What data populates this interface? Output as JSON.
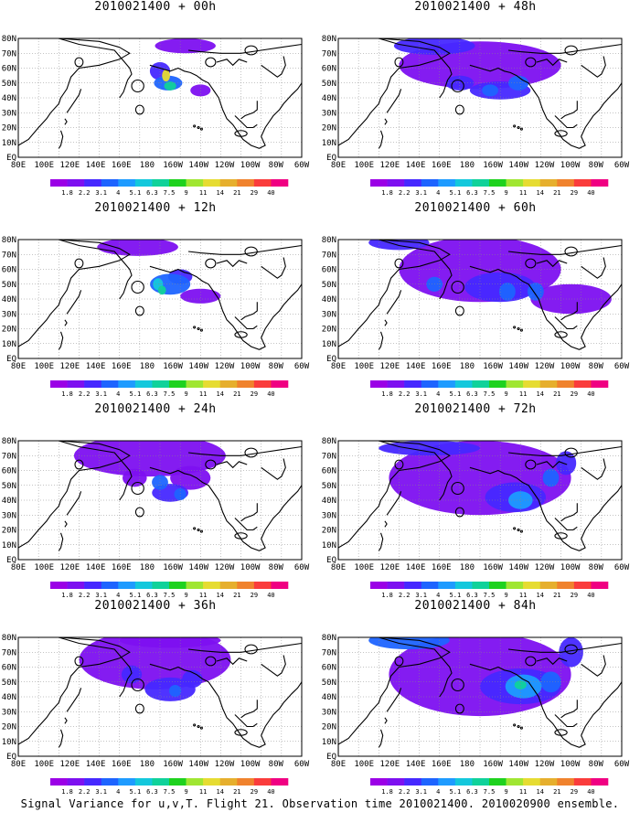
{
  "footer": "Signal Variance for u,v,T. Flight 21. Observation time 2010021400. 2010020900 ensemble.",
  "lon_labels": [
    "80E",
    "100E",
    "120E",
    "140E",
    "160E",
    "180",
    "160W",
    "140W",
    "120W",
    "100W",
    "80W",
    "60W"
  ],
  "lat_labels": [
    "EQ",
    "10N",
    "20N",
    "30N",
    "40N",
    "50N",
    "60N",
    "70N",
    "80N"
  ],
  "colorbar": {
    "levels": [
      "1.8",
      "2.2",
      "3.1",
      "4",
      "5.1",
      "6.3",
      "7.5",
      "9",
      "11",
      "14",
      "21",
      "29",
      "40"
    ],
    "colors": [
      "#9b00e6",
      "#7d10f0",
      "#4628ff",
      "#1e64ff",
      "#1e9bff",
      "#14c8dc",
      "#10d29a",
      "#1ed21e",
      "#a0e632",
      "#e6dc32",
      "#e6af2d",
      "#f0822d",
      "#fa3c3c",
      "#f00082"
    ]
  },
  "chart_data": [
    {
      "type": "heatmap",
      "title": "2010021400 + 00h",
      "lead_hours": 0,
      "xlim": [
        "80E",
        "60W"
      ],
      "ylim": [
        "EQ",
        "80N"
      ],
      "approx_max_variance": 29,
      "blobs": [
        [
          148,
          50,
          14,
          5,
          3
        ],
        [
          140,
          58,
          10,
          6,
          2
        ],
        [
          165,
          75,
          30,
          5,
          1
        ],
        [
          180,
          45,
          10,
          4,
          1
        ],
        [
          150,
          48,
          6,
          3,
          6
        ],
        [
          146,
          55,
          4,
          4,
          9
        ]
      ]
    },
    {
      "type": "heatmap",
      "title": "2010021400 + 12h",
      "lead_hours": 12,
      "xlim": [
        "80E",
        "60W"
      ],
      "ylim": [
        "EQ",
        "80N"
      ],
      "approx_max_variance": 7.5,
      "blobs": [
        [
          150,
          50,
          20,
          7,
          3
        ],
        [
          118,
          75,
          40,
          6,
          1
        ],
        [
          180,
          42,
          20,
          5,
          1
        ],
        [
          138,
          50,
          5,
          4,
          5
        ],
        [
          142,
          46,
          4,
          3,
          6
        ],
        [
          160,
          55,
          12,
          5,
          2
        ]
      ]
    },
    {
      "type": "heatmap",
      "title": "2010021400 + 24h",
      "lead_hours": 24,
      "xlim": [
        "80E",
        "60W"
      ],
      "ylim": [
        "EQ",
        "80N"
      ],
      "approx_max_variance": 5.1,
      "blobs": [
        [
          130,
          70,
          75,
          14,
          1
        ],
        [
          150,
          45,
          18,
          6,
          2
        ],
        [
          170,
          55,
          20,
          8,
          1
        ],
        [
          140,
          52,
          8,
          5,
          3
        ],
        [
          160,
          44,
          6,
          4,
          3
        ],
        [
          115,
          55,
          12,
          6,
          1
        ]
      ]
    },
    {
      "type": "heatmap",
      "title": "2010021400 + 36h",
      "lead_hours": 36,
      "xlim": [
        "80E",
        "60W"
      ],
      "ylim": [
        "EQ",
        "80N"
      ],
      "approx_max_variance": 4,
      "blobs": [
        [
          135,
          65,
          75,
          20,
          1
        ],
        [
          150,
          45,
          25,
          8,
          2
        ],
        [
          150,
          78,
          50,
          5,
          1
        ],
        [
          112,
          55,
          10,
          6,
          2
        ],
        [
          172,
          52,
          10,
          6,
          2
        ],
        [
          155,
          44,
          6,
          4,
          3
        ]
      ]
    },
    {
      "type": "heatmap",
      "title": "2010021400 + 48h",
      "lead_hours": 48,
      "xlim": [
        "80E",
        "60W"
      ],
      "ylim": [
        "EQ",
        "80N"
      ],
      "approx_max_variance": 4,
      "blobs": [
        [
          140,
          62,
          80,
          16,
          1
        ],
        [
          160,
          45,
          30,
          6,
          2
        ],
        [
          120,
          50,
          14,
          5,
          2
        ],
        [
          95,
          75,
          40,
          6,
          2
        ],
        [
          178,
          50,
          10,
          5,
          3
        ],
        [
          150,
          45,
          8,
          4,
          3
        ]
      ]
    },
    {
      "type": "heatmap",
      "title": "2010021400 + 60h",
      "lead_hours": 60,
      "xlim": [
        "80E",
        "60W"
      ],
      "ylim": [
        "EQ",
        "80N"
      ],
      "approx_max_variance": 5.1,
      "blobs": [
        [
          140,
          60,
          80,
          22,
          1
        ],
        [
          160,
          48,
          35,
          10,
          2
        ],
        [
          195,
          45,
          8,
          6,
          3
        ],
        [
          167,
          45,
          8,
          6,
          3
        ],
        [
          95,
          50,
          8,
          5,
          3
        ],
        [
          60,
          78,
          30,
          5,
          2
        ],
        [
          230,
          40,
          40,
          10,
          1
        ]
      ]
    },
    {
      "type": "heatmap",
      "title": "2010021400 + 72h",
      "lead_hours": 72,
      "xlim": [
        "80E",
        "60W"
      ],
      "ylim": [
        "EQ",
        "80N"
      ],
      "approx_max_variance": 6.3,
      "blobs": [
        [
          140,
          55,
          90,
          25,
          1
        ],
        [
          175,
          42,
          30,
          10,
          2
        ],
        [
          180,
          40,
          12,
          6,
          4
        ],
        [
          210,
          55,
          8,
          6,
          3
        ],
        [
          90,
          75,
          50,
          5,
          2
        ],
        [
          225,
          65,
          10,
          8,
          2
        ]
      ]
    },
    {
      "type": "heatmap",
      "title": "2010021400 + 84h",
      "lead_hours": 84,
      "xlim": [
        "80E",
        "60W"
      ],
      "ylim": [
        "EQ",
        "80N"
      ],
      "approx_max_variance": 9,
      "blobs": [
        [
          140,
          55,
          90,
          28,
          1
        ],
        [
          180,
          47,
          40,
          12,
          2
        ],
        [
          183,
          47,
          18,
          8,
          4
        ],
        [
          180,
          48,
          6,
          3,
          6
        ],
        [
          210,
          50,
          10,
          7,
          3
        ],
        [
          70,
          78,
          40,
          6,
          3
        ],
        [
          230,
          70,
          12,
          10,
          2
        ]
      ]
    }
  ]
}
